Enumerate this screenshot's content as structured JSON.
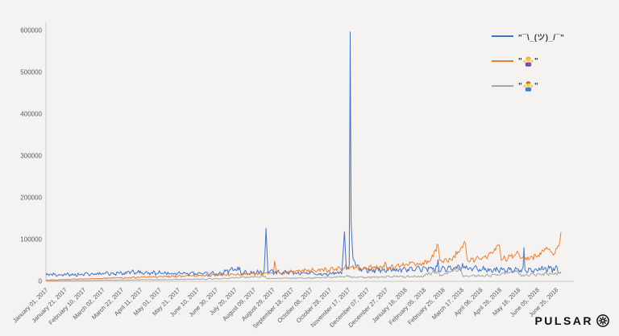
{
  "page": {
    "background": "#f4f3f1"
  },
  "legend": {
    "items": [
      {
        "label": "\"¯\\_(ツ)_/¯\"",
        "color": "#4472C4",
        "icon": "line-swatch"
      },
      {
        "label": "\"🤷‍♀️\"",
        "emoji_char": "🤷‍♀️",
        "quote_mark": "\"",
        "color": "#ED7D31",
        "icon": "woman-shrugging-emoji"
      },
      {
        "label": "\"🤷‍♂️\"",
        "emoji_char": "🤷‍♂️",
        "quote_mark": "\"",
        "color": "#A6A6A6",
        "icon": "man-shrugging-emoji"
      }
    ]
  },
  "footer": {
    "brand": "PULSAR"
  },
  "chart_data": {
    "type": "line",
    "title": "",
    "xlabel": "",
    "ylabel": "",
    "x_range": [
      "2017-01-01",
      "2018-06-30"
    ],
    "ylim": [
      0,
      600000
    ],
    "y_ticks": [
      0,
      100000,
      200000,
      300000,
      400000,
      500000,
      600000
    ],
    "x_tick_interval_days": 20,
    "x_tick_labels": [
      "January 01, 2017",
      "January 21, 2017",
      "February 10, 2017",
      "March 02, 2017",
      "March 22, 2017",
      "April 11, 2017",
      "May 01, 2017",
      "May 21, 2017",
      "June 10, 2017",
      "June 30, 2017",
      "July 20, 2017",
      "August 09, 2017",
      "August 29, 2017",
      "September 18, 2017",
      "October 08, 2017",
      "October 28, 2017",
      "November 17, 2017",
      "December 07, 2017",
      "December 27, 2017",
      "January 16, 2018",
      "February 05, 2018",
      "February 25, 2018",
      "March 17, 2018",
      "April 06, 2018",
      "April 26, 2018",
      "May 16, 2018",
      "June 05, 2018",
      "June 25, 2018"
    ],
    "grid": false,
    "legend_position": "top-right",
    "axis_color": "#c9c7c3",
    "label_color": "#595959",
    "series": [
      {
        "name": "\"¯\\_(ツ)_/¯\"",
        "color": "#4472C4",
        "noise_rel": 0.22,
        "noise_weekly": 0.1,
        "seed": 7,
        "anchors": [
          [
            "2017-01-01",
            15000
          ],
          [
            "2017-02-15",
            17000
          ],
          [
            "2017-04-01",
            21000
          ],
          [
            "2017-05-15",
            19000
          ],
          [
            "2017-07-01",
            18000
          ],
          [
            "2017-07-25",
            30000
          ],
          [
            "2017-07-27",
            20000
          ],
          [
            "2017-08-20",
            22000
          ],
          [
            "2017-08-22",
            130000
          ],
          [
            "2017-08-24",
            22000
          ],
          [
            "2017-09-15",
            20000
          ],
          [
            "2017-10-15",
            18000
          ],
          [
            "2017-11-10",
            20000
          ],
          [
            "2017-11-13",
            110000
          ],
          [
            "2017-11-15",
            26000
          ],
          [
            "2017-11-18",
            40000
          ],
          [
            "2017-11-19",
            590000
          ],
          [
            "2017-11-20",
            140000
          ],
          [
            "2017-11-22",
            55000
          ],
          [
            "2017-11-26",
            32000
          ],
          [
            "2017-12-15",
            27000
          ],
          [
            "2018-01-15",
            28000
          ],
          [
            "2018-02-19",
            30000
          ],
          [
            "2018-02-20",
            52000
          ],
          [
            "2018-02-21",
            30000
          ],
          [
            "2018-03-20",
            34000
          ],
          [
            "2018-04-15",
            28000
          ],
          [
            "2018-05-21",
            28000
          ],
          [
            "2018-05-22",
            80000
          ],
          [
            "2018-05-23",
            28000
          ],
          [
            "2018-06-10",
            30000
          ],
          [
            "2018-06-30",
            28000
          ]
        ]
      },
      {
        "name": "\"🤷‍♀️\"",
        "color": "#ED7D31",
        "noise_rel": 0.18,
        "noise_weekly": 0.06,
        "seed": 13,
        "anchors": [
          [
            "2017-01-01",
            3000
          ],
          [
            "2017-02-15",
            6000
          ],
          [
            "2017-04-01",
            9000
          ],
          [
            "2017-05-15",
            12000
          ],
          [
            "2017-07-01",
            15000
          ],
          [
            "2017-08-10",
            18000
          ],
          [
            "2017-08-30",
            20000
          ],
          [
            "2017-08-31",
            52000
          ],
          [
            "2017-09-02",
            21000
          ],
          [
            "2017-10-01",
            25000
          ],
          [
            "2017-11-01",
            28000
          ],
          [
            "2017-11-19",
            34000
          ],
          [
            "2017-12-01",
            31000
          ],
          [
            "2017-12-25",
            33000
          ],
          [
            "2017-12-26",
            48000
          ],
          [
            "2017-12-28",
            34000
          ],
          [
            "2018-01-15",
            38000
          ],
          [
            "2018-02-10",
            45000
          ],
          [
            "2018-02-20",
            85000
          ],
          [
            "2018-02-22",
            47000
          ],
          [
            "2018-03-05",
            50000
          ],
          [
            "2018-03-21",
            90000
          ],
          [
            "2018-03-23",
            50000
          ],
          [
            "2018-04-10",
            55000
          ],
          [
            "2018-04-26",
            85000
          ],
          [
            "2018-04-28",
            52000
          ],
          [
            "2018-05-16",
            65000
          ],
          [
            "2018-05-20",
            52000
          ],
          [
            "2018-06-05",
            62000
          ],
          [
            "2018-06-15",
            78000
          ],
          [
            "2018-06-22",
            65000
          ],
          [
            "2018-06-28",
            90000
          ],
          [
            "2018-06-30",
            115000
          ]
        ]
      },
      {
        "name": "\"🤷‍♂️\"",
        "color": "#A6A6A6",
        "noise_rel": 0.2,
        "noise_weekly": 0.06,
        "seed": 29,
        "anchors": [
          [
            "2017-01-01",
            1000
          ],
          [
            "2017-03-01",
            2500
          ],
          [
            "2017-05-01",
            4000
          ],
          [
            "2017-07-01",
            6000
          ],
          [
            "2017-08-21",
            13000
          ],
          [
            "2017-08-23",
            7000
          ],
          [
            "2017-10-15",
            8000
          ],
          [
            "2017-11-19",
            12000
          ],
          [
            "2017-11-21",
            9000
          ],
          [
            "2018-01-01",
            11000
          ],
          [
            "2018-02-01",
            12000
          ],
          [
            "2018-02-20",
            24000
          ],
          [
            "2018-02-22",
            12000
          ],
          [
            "2018-03-16",
            33000
          ],
          [
            "2018-03-18",
            13000
          ],
          [
            "2018-04-15",
            14000
          ],
          [
            "2018-05-16",
            24000
          ],
          [
            "2018-05-18",
            15000
          ],
          [
            "2018-06-10",
            17000
          ],
          [
            "2018-06-30",
            19000
          ]
        ]
      }
    ]
  }
}
